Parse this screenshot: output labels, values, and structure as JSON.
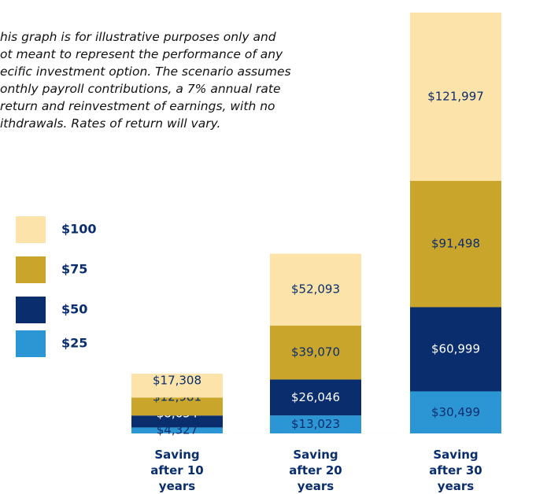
{
  "chart_data": {
    "type": "stacked_bar",
    "annotation": [
      "his graph is for illustrative purposes only and",
      "ot meant to represent the performance of any",
      "ecific investment option. The scenario assumes",
      "onthly payroll contributions, a 7% annual rate",
      "return and reinvestment of earnings, with no",
      "ithdrawals. Rates of return will vary."
    ],
    "categories": [
      "Saving after 10 years",
      "Saving after 20 years",
      "Saving after 30 years"
    ],
    "series": [
      {
        "name": "$25",
        "color": "#2b96d3",
        "label_color": "#0a2d6e",
        "values": [
          4327,
          13023,
          30499
        ],
        "value_labels": [
          "$4,327",
          "$13,023",
          "$30,499"
        ]
      },
      {
        "name": "$50",
        "color": "#0a2d6e",
        "label_color": "#ffffff",
        "values": [
          8654,
          26046,
          60999
        ],
        "value_labels": [
          "$8,654",
          "$26,046",
          "$60,999"
        ]
      },
      {
        "name": "$75",
        "color": "#c9a52c",
        "label_color": "#0a2d6e",
        "values": [
          12981,
          39070,
          91498
        ],
        "value_labels": [
          "$12,981",
          "$39,070",
          "$91,498"
        ]
      },
      {
        "name": "$100",
        "color": "#fbe3a9",
        "label_color": "#0a2d6e",
        "values": [
          17308,
          52093,
          121997
        ],
        "value_labels": [
          "$17,308",
          "$52,093",
          "$121,997"
        ]
      }
    ]
  }
}
